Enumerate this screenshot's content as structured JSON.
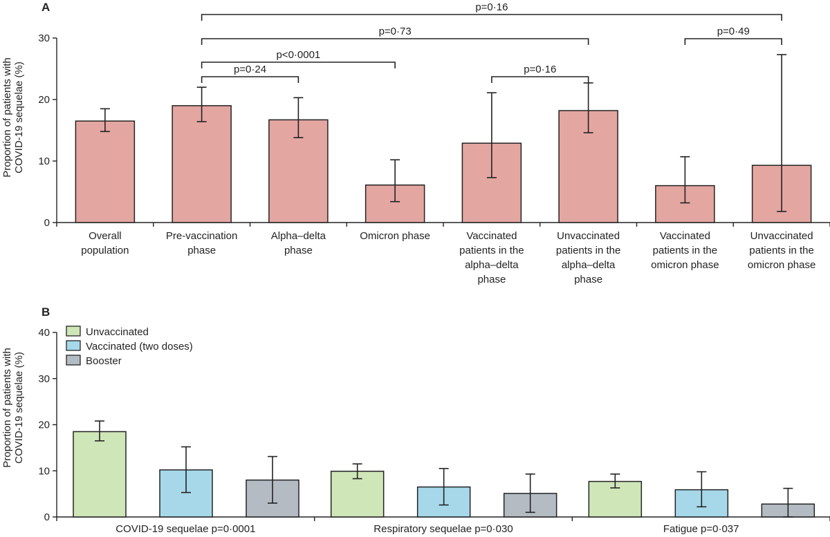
{
  "chart_data": [
    {
      "panel": "A",
      "type": "bar",
      "ylabel": [
        "Proportion of patients with",
        "COVID-19 sequelae (%)"
      ],
      "ylim": [
        0,
        30
      ],
      "yticks": [
        "0",
        "10",
        "20",
        "30"
      ],
      "bar_color": "#e3a6a1",
      "categories": [
        [
          "Overall",
          "population"
        ],
        [
          "Pre-vaccination",
          "phase"
        ],
        [
          "Alpha–delta",
          "phase"
        ],
        [
          "Omicron phase"
        ],
        [
          "Vaccinated",
          "patients in the",
          "alpha–delta",
          "phase"
        ],
        [
          "Unvaccinated",
          "patients in the",
          "alpha–delta",
          "phase"
        ],
        [
          "Vaccinated",
          "patients in the",
          "omicron phase"
        ],
        [
          "Unvaccinated",
          "patients in the",
          "omicron phase"
        ]
      ],
      "values": [
        16.5,
        19.0,
        16.7,
        6.1,
        12.9,
        18.2,
        6.0,
        9.3
      ],
      "err_low": [
        14.8,
        16.4,
        13.8,
        3.4,
        7.3,
        14.6,
        3.2,
        1.8
      ],
      "err_high": [
        18.5,
        22.0,
        20.3,
        10.2,
        21.1,
        22.7,
        10.7,
        27.3
      ],
      "comparisons": [
        {
          "from": 1,
          "to": 7,
          "label": "p=0·16",
          "level": 0
        },
        {
          "from": 1,
          "to": 5,
          "label": "p=0·73",
          "level": 1
        },
        {
          "from": 6,
          "to": 7,
          "label": "p=0·49",
          "level": 1
        },
        {
          "from": 1,
          "to": 3,
          "label": "p<0·0001",
          "level": 2
        },
        {
          "from": 4,
          "to": 5,
          "label": "p=0·16",
          "level": 3
        },
        {
          "from": 1,
          "to": 2,
          "label": "p=0·24",
          "level": 3
        }
      ]
    },
    {
      "panel": "B",
      "type": "bar",
      "ylabel": [
        "Proportion of patients with",
        "COVID-19 sequelae (%)"
      ],
      "ylim": [
        0,
        40
      ],
      "yticks": [
        "0",
        "10",
        "20",
        "30",
        "40"
      ],
      "groups": [
        "COVID-19 sequelae p=0·0001",
        "Respiratory sequelae p=0·030",
        "Fatigue p=0·037"
      ],
      "legend_position": "top-left",
      "series": [
        {
          "name": "Unvaccinated",
          "color": "#cfe6b8",
          "values": [
            18.5,
            9.9,
            7.7
          ],
          "err_low": [
            16.5,
            8.3,
            6.3
          ],
          "err_high": [
            20.8,
            11.5,
            9.3
          ]
        },
        {
          "name": "Vaccinated (two doses)",
          "color": "#a6d8ea",
          "values": [
            10.2,
            6.5,
            5.9
          ],
          "err_low": [
            5.3,
            2.6,
            2.2
          ],
          "err_high": [
            15.2,
            10.5,
            9.8
          ]
        },
        {
          "name": "Booster",
          "color": "#b4bbc2",
          "values": [
            8.0,
            5.1,
            2.8
          ],
          "err_low": [
            3.0,
            1.0,
            0.0
          ],
          "err_high": [
            13.1,
            9.3,
            6.2
          ]
        }
      ]
    }
  ]
}
